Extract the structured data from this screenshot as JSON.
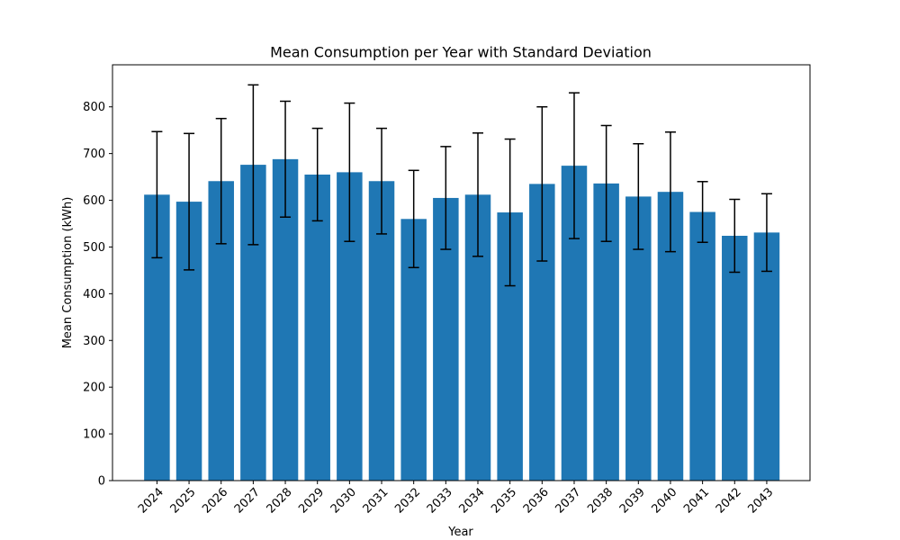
{
  "chart_data": {
    "type": "bar",
    "title": "Mean Consumption per Year with Standard Deviation",
    "xlabel": "Year",
    "ylabel": "Mean Consumption (kWh)",
    "categories": [
      "2024",
      "2025",
      "2026",
      "2027",
      "2028",
      "2029",
      "2030",
      "2031",
      "2032",
      "2033",
      "2034",
      "2035",
      "2036",
      "2037",
      "2038",
      "2039",
      "2040",
      "2041",
      "2042",
      "2043"
    ],
    "values": [
      612,
      597,
      641,
      676,
      688,
      655,
      660,
      641,
      560,
      605,
      612,
      574,
      635,
      674,
      636,
      608,
      618,
      575,
      524,
      531
    ],
    "errors": [
      135,
      146,
      134,
      171,
      124,
      99,
      148,
      113,
      104,
      110,
      132,
      157,
      165,
      156,
      124,
      113,
      128,
      65,
      78,
      83
    ],
    "ylim": [
      0,
      890
    ],
    "yticks": [
      0,
      100,
      200,
      300,
      400,
      500,
      600,
      700,
      800
    ],
    "bar_color": "#1f77b4",
    "error_color": "#000000",
    "grid": false,
    "legend": "none"
  }
}
